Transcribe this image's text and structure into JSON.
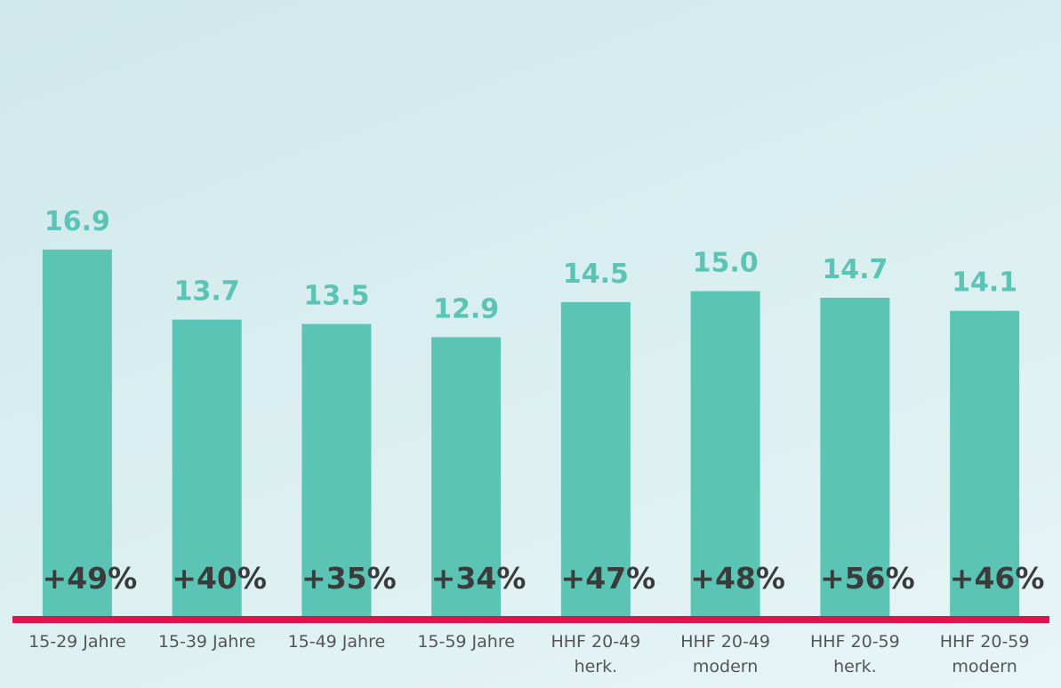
{
  "chart_data": {
    "type": "bar",
    "categories": [
      "15-29 Jahre",
      "15-39 Jahre",
      "15-49 Jahre",
      "15-59 Jahre",
      "HHF 20-49 herk.",
      "HHF 20-49 modern",
      "HHF 20-59 herk.",
      "HHF 20-59 modern"
    ],
    "values": [
      16.9,
      13.7,
      13.5,
      12.9,
      14.5,
      15.0,
      14.7,
      14.1
    ],
    "value_labels": [
      "16.9",
      "13.7",
      "13.5",
      "12.9",
      "14.5",
      "15.0",
      "14.7",
      "14.1"
    ],
    "annotations": [
      "+49%",
      "+40%",
      "+35%",
      "+34%",
      "+47%",
      "+48%",
      "+56%",
      "+46%"
    ],
    "color": "#5bc4b5",
    "ylim": [
      0,
      28.3
    ]
  }
}
